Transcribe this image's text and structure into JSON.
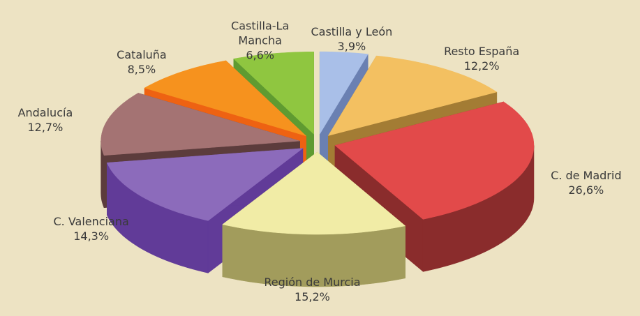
{
  "chart_data": {
    "type": "pie3d",
    "categories": [
      "Castilla y León",
      "Resto España",
      "C. de Madrid",
      "Región de Murcia",
      "C. Valenciana",
      "Andalucía",
      "Cataluña",
      "Castilla-La\nMancha"
    ],
    "values": [
      3.9,
      12.2,
      26.6,
      15.2,
      14.3,
      12.7,
      8.5,
      6.6
    ],
    "value_labels": [
      "3,9%",
      "12,2%",
      "26,6%",
      "15,2%",
      "14,3%",
      "12,7%",
      "8,5%",
      "6,6%"
    ],
    "colors": [
      "#a9bfe8",
      "#f3c061",
      "#e24a4a",
      "#f1eca6",
      "#8c6bbb",
      "#a47373",
      "#f6921e",
      "#8fc640"
    ],
    "side_colors": [
      "#6a80b2",
      "#a37c34",
      "#8a2c2c",
      "#a29c5c",
      "#613b98",
      "#5c3c3c",
      "#ee6212",
      "#5f9b31"
    ]
  }
}
